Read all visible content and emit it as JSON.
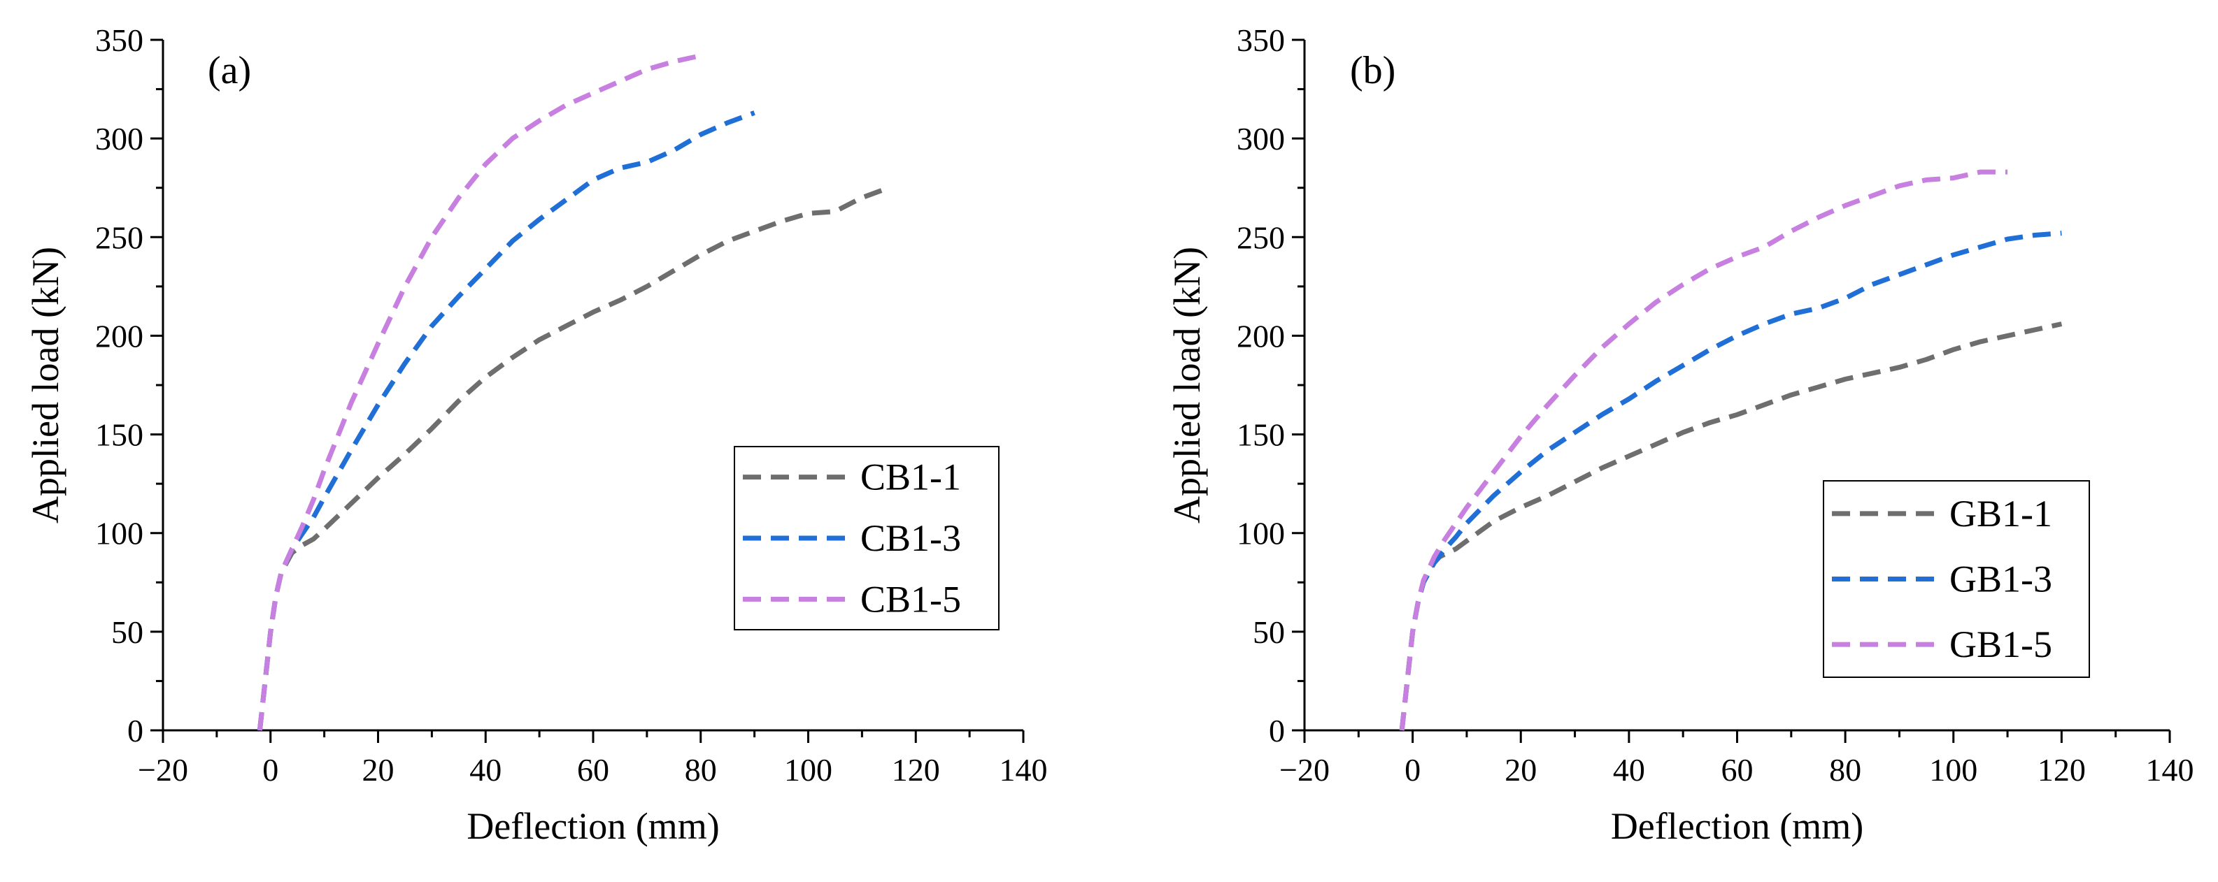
{
  "figure": {
    "palette": {
      "dark_gray": "#6e6e6e",
      "blue": "#1f6fd6",
      "violet": "#c77fe0"
    }
  },
  "chart_data": [
    {
      "type": "line",
      "panel_label": "(a)",
      "xlabel": "Deflection (mm)",
      "ylabel": "Applied load (kN)",
      "xlim": [
        -20,
        140
      ],
      "ylim": [
        0,
        350
      ],
      "xticks": [
        -20,
        0,
        20,
        40,
        60,
        80,
        100,
        120,
        140
      ],
      "yticks": [
        0,
        50,
        100,
        150,
        200,
        250,
        300,
        350
      ],
      "grid": false,
      "legend_position": "center-right",
      "series": [
        {
          "name": "CB1-1",
          "color": "#6e6e6e",
          "dash": "dashed",
          "x": [
            -2,
            -1,
            0,
            1,
            2,
            4,
            6,
            8,
            10,
            15,
            20,
            25,
            30,
            35,
            40,
            45,
            50,
            55,
            60,
            65,
            70,
            75,
            80,
            85,
            90,
            95,
            100,
            105,
            110,
            114
          ],
          "y": [
            0,
            25,
            50,
            68,
            80,
            90,
            94,
            97,
            102,
            115,
            128,
            140,
            153,
            167,
            179,
            189,
            198,
            205,
            212,
            218,
            225,
            233,
            241,
            248,
            253,
            258,
            262,
            263,
            270,
            274
          ]
        },
        {
          "name": "CB1-3",
          "color": "#1f6fd6",
          "dash": "dashed",
          "x": [
            -2,
            -1,
            0,
            1,
            2,
            4,
            6,
            8,
            10,
            15,
            20,
            25,
            30,
            35,
            40,
            45,
            50,
            55,
            60,
            65,
            70,
            75,
            80,
            85,
            90
          ],
          "y": [
            0,
            25,
            50,
            68,
            80,
            92,
            100,
            108,
            118,
            142,
            165,
            186,
            205,
            220,
            234,
            248,
            259,
            269,
            279,
            285,
            288,
            294,
            302,
            308,
            313
          ]
        },
        {
          "name": "CB1-5",
          "color": "#c77fe0",
          "dash": "dashed",
          "x": [
            -2,
            -1,
            0,
            1,
            2,
            4,
            6,
            8,
            10,
            15,
            20,
            25,
            30,
            35,
            40,
            45,
            50,
            55,
            60,
            65,
            70,
            75,
            80
          ],
          "y": [
            0,
            25,
            50,
            68,
            80,
            92,
            104,
            117,
            132,
            166,
            196,
            225,
            250,
            270,
            287,
            300,
            309,
            317,
            323,
            329,
            335,
            339,
            342
          ]
        }
      ]
    },
    {
      "type": "line",
      "panel_label": "(b)",
      "xlabel": "Deflection (mm)",
      "ylabel": "Applied load (kN)",
      "xlim": [
        -20,
        140
      ],
      "ylim": [
        0,
        350
      ],
      "xticks": [
        -20,
        0,
        20,
        40,
        60,
        80,
        100,
        120,
        140
      ],
      "yticks": [
        0,
        50,
        100,
        150,
        200,
        250,
        300,
        350
      ],
      "grid": false,
      "legend_position": "bottom-right",
      "series": [
        {
          "name": "GB1-1",
          "color": "#6e6e6e",
          "dash": "dashed",
          "x": [
            -2,
            -1,
            0,
            1,
            2,
            3,
            5,
            8,
            10,
            15,
            20,
            25,
            30,
            35,
            40,
            45,
            50,
            55,
            60,
            65,
            70,
            75,
            80,
            85,
            90,
            95,
            100,
            105,
            110,
            115,
            120
          ],
          "y": [
            0,
            25,
            50,
            65,
            75,
            82,
            88,
            92,
            96,
            106,
            113,
            119,
            126,
            133,
            139,
            145,
            151,
            156,
            160,
            165,
            170,
            174,
            178,
            181,
            184,
            188,
            193,
            197,
            200,
            203,
            206
          ]
        },
        {
          "name": "GB1-3",
          "color": "#1f6fd6",
          "dash": "dashed",
          "x": [
            -2,
            -1,
            0,
            1,
            2,
            4,
            6,
            8,
            10,
            15,
            20,
            25,
            30,
            35,
            40,
            45,
            50,
            55,
            60,
            65,
            70,
            75,
            80,
            85,
            90,
            95,
            100,
            105,
            110,
            115,
            120
          ],
          "y": [
            0,
            25,
            50,
            65,
            75,
            85,
            92,
            98,
            105,
            119,
            131,
            142,
            151,
            160,
            168,
            177,
            185,
            193,
            200,
            206,
            211,
            214,
            219,
            226,
            231,
            236,
            241,
            245,
            249,
            251,
            252
          ]
        },
        {
          "name": "GB1-5",
          "color": "#c77fe0",
          "dash": "dashed",
          "x": [
            -2,
            -1,
            0,
            1,
            2,
            4,
            6,
            8,
            10,
            15,
            20,
            25,
            30,
            35,
            40,
            45,
            50,
            55,
            60,
            65,
            70,
            75,
            80,
            85,
            90,
            95,
            100,
            105,
            110
          ],
          "y": [
            0,
            25,
            50,
            65,
            76,
            88,
            97,
            105,
            113,
            131,
            149,
            165,
            180,
            194,
            206,
            217,
            226,
            234,
            240,
            245,
            253,
            260,
            266,
            271,
            276,
            279,
            280,
            283,
            283
          ]
        }
      ]
    }
  ]
}
